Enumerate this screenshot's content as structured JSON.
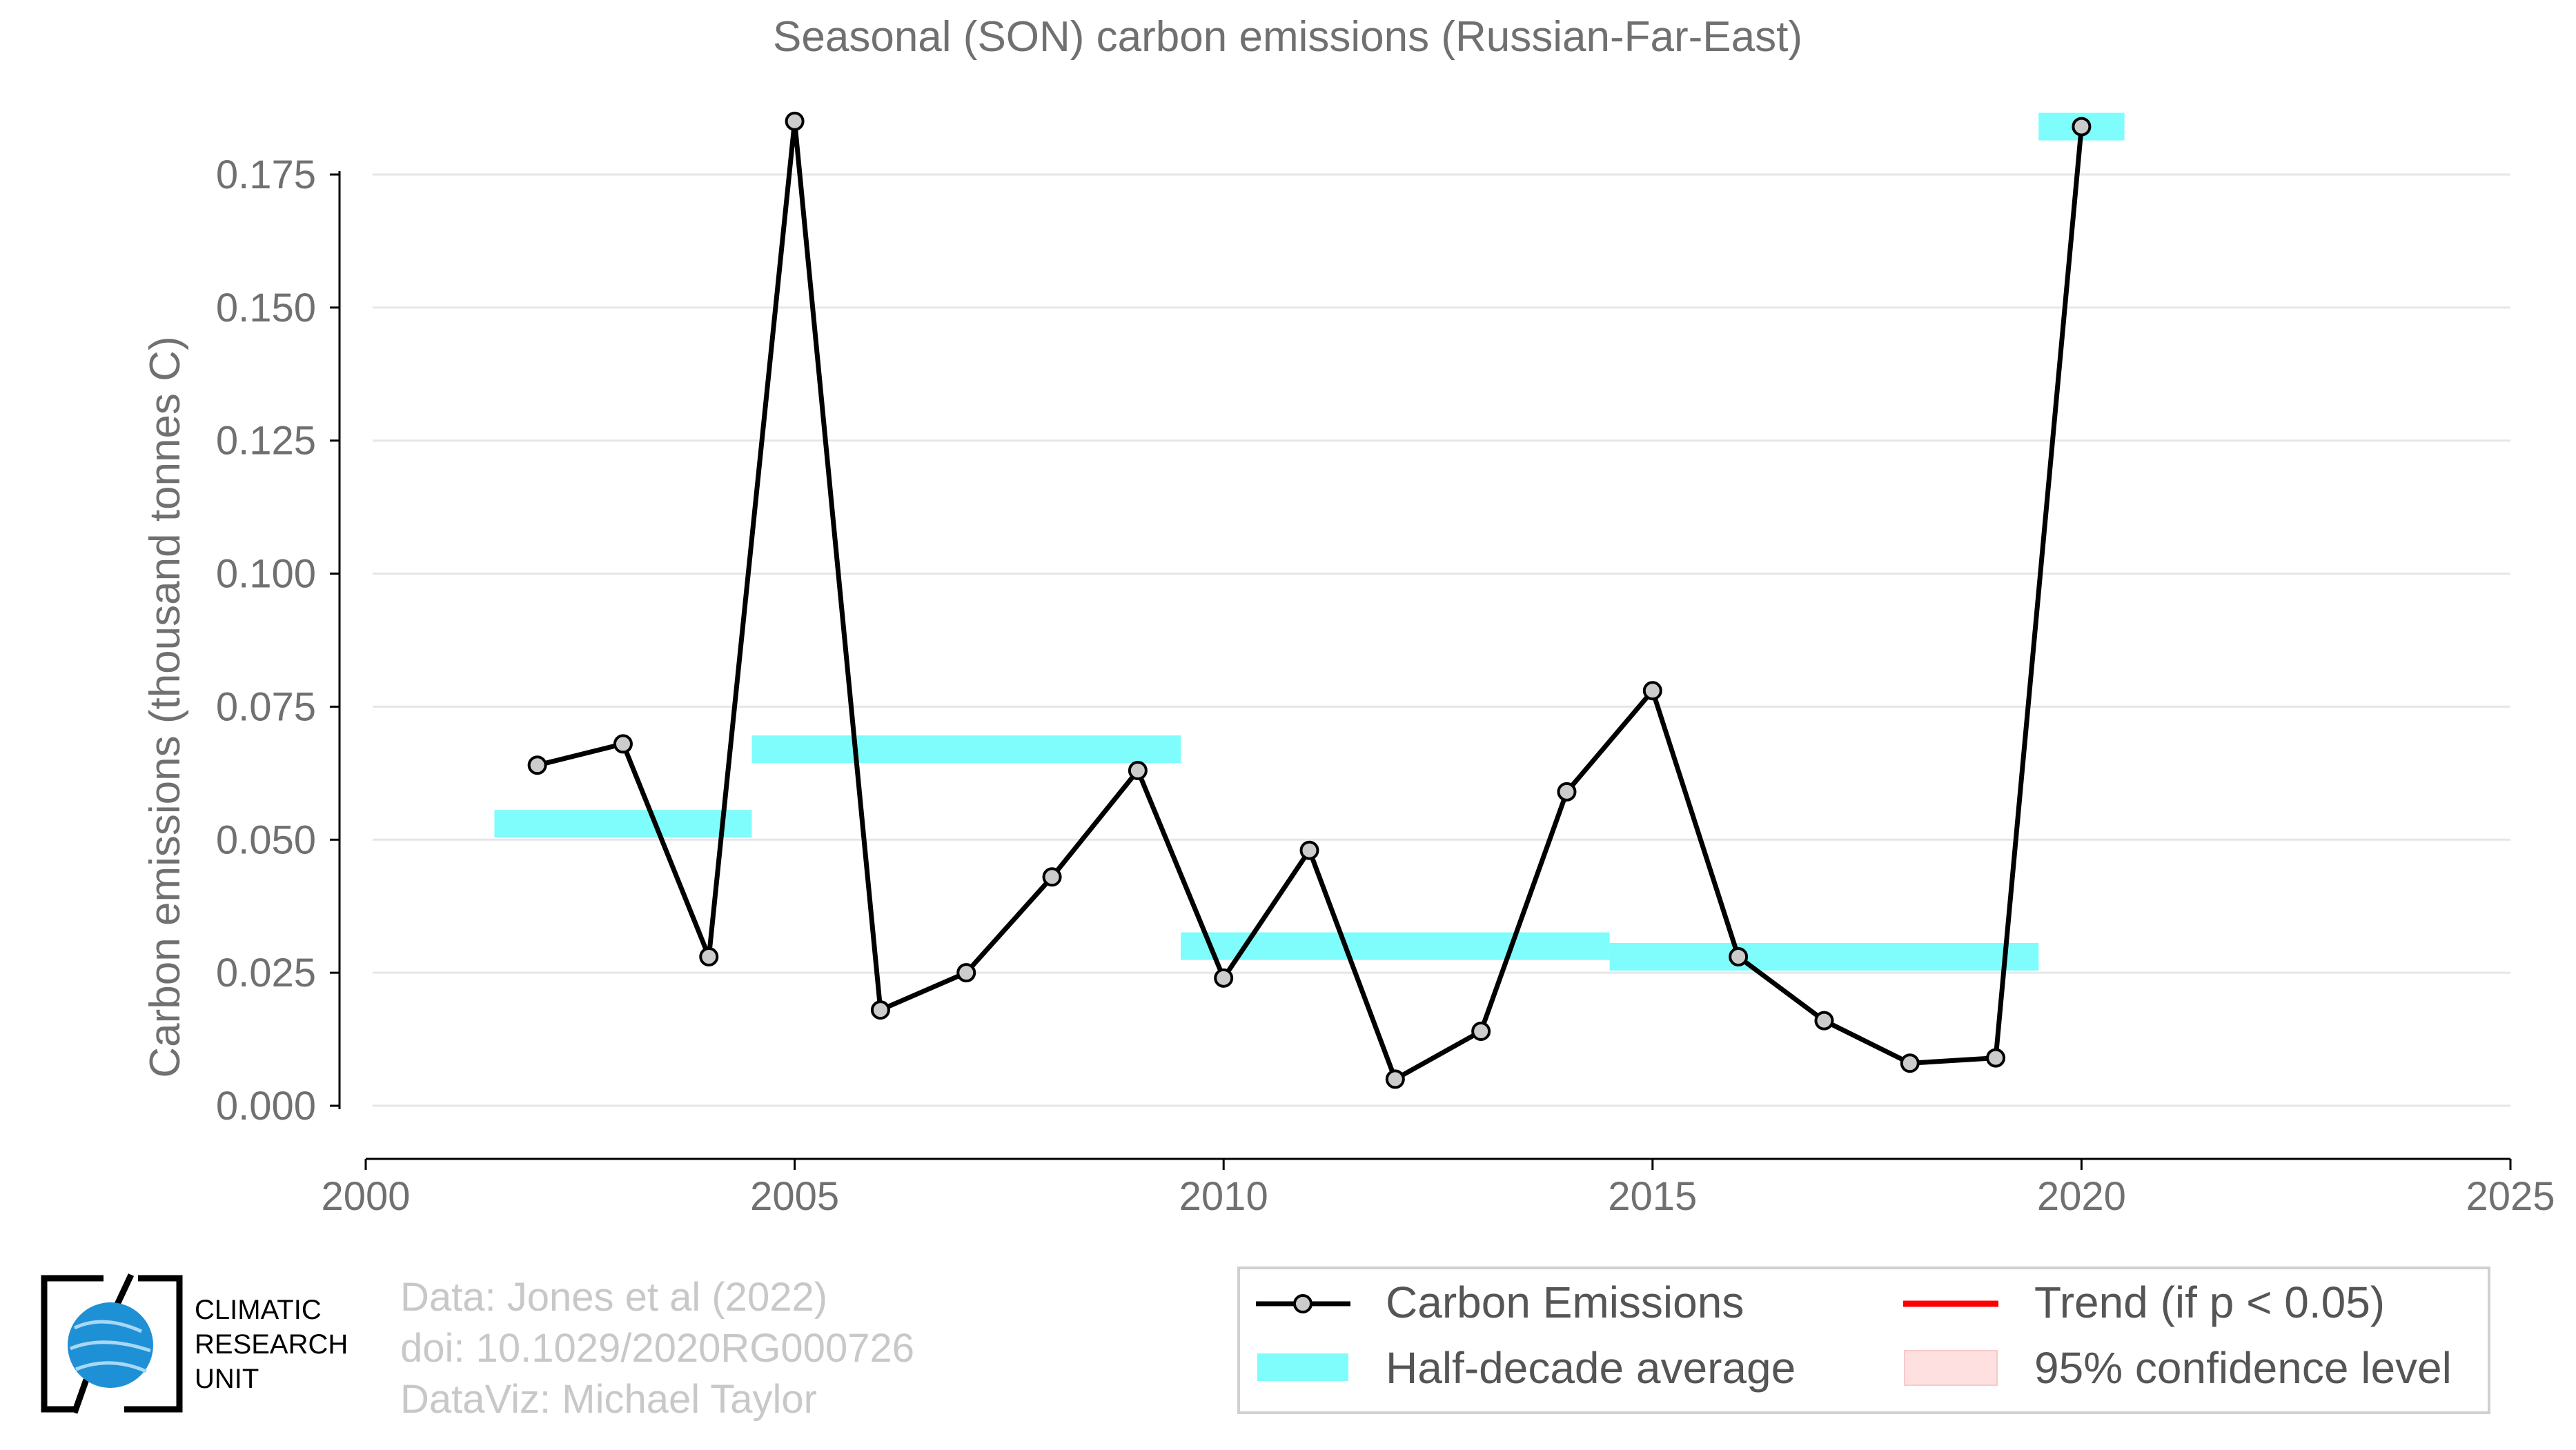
{
  "chart_data": {
    "type": "line",
    "title": "Seasonal (SON) carbon emissions (Russian-Far-East)",
    "ylabel": "Carbon emissions (thousand tonnes C)",
    "xlabel": "",
    "xlim": [
      2000,
      2025
    ],
    "ylim": [
      -0.006,
      0.185
    ],
    "x_ticks": [
      "2000",
      "2005",
      "2010",
      "2015",
      "2020",
      "2025"
    ],
    "y_ticks": [
      "0.000",
      "0.025",
      "0.050",
      "0.075",
      "0.100",
      "0.125",
      "0.150",
      "0.175"
    ],
    "grid": "horizontal",
    "series": [
      {
        "name": "Carbon Emissions",
        "color": "#000000",
        "x": [
          2002,
          2003,
          2004,
          2005,
          2006,
          2007,
          2008,
          2009,
          2010,
          2011,
          2012,
          2013,
          2014,
          2015,
          2016,
          2017,
          2018,
          2019,
          2020
        ],
        "values": [
          0.064,
          0.068,
          0.028,
          0.185,
          0.018,
          0.025,
          0.043,
          0.063,
          0.024,
          0.048,
          0.005,
          0.014,
          0.059,
          0.078,
          0.028,
          0.016,
          0.008,
          0.009,
          0.184
        ]
      }
    ],
    "half_decade_average": {
      "name": "Half-decade average",
      "color": "#7ffcfc",
      "segments": [
        {
          "x_start": 2001.5,
          "x_end": 2004.5,
          "value": 0.053
        },
        {
          "x_start": 2004.5,
          "x_end": 2009.5,
          "value": 0.067
        },
        {
          "x_start": 2009.5,
          "x_end": 2014.5,
          "value": 0.03
        },
        {
          "x_start": 2014.5,
          "x_end": 2019.5,
          "value": 0.028
        },
        {
          "x_start": 2019.5,
          "x_end": 2020.5,
          "value": 0.184
        }
      ]
    },
    "legend": {
      "placement": "bottom-right",
      "entries": [
        "Carbon Emissions",
        "Trend (if p < 0.05)",
        "Half-decade average",
        "95% confidence level"
      ]
    }
  },
  "credits": {
    "line1": "Data: Jones et al (2022)",
    "line2": "doi: 10.1029/2020RG000726",
    "line3": "DataViz: Michael Taylor"
  },
  "logo": {
    "line1": "CLIMATIC",
    "line2": "RESEARCH",
    "line3": "UNIT"
  },
  "colors": {
    "trend": "#ff0000",
    "confidence": "#ffe0e0",
    "grid": "#e6e6e6",
    "marker_fill": "#cccccc"
  }
}
